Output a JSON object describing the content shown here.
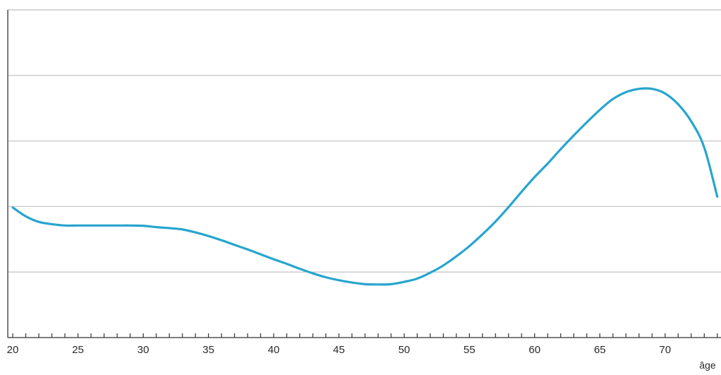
{
  "chart_data": {
    "type": "line",
    "title": "",
    "xlabel": "âge",
    "ylabel": "",
    "xlim": [
      20,
      74
    ],
    "xticks": [
      20,
      25,
      30,
      35,
      40,
      45,
      50,
      55,
      60,
      65,
      70
    ],
    "x_minor_step": 1,
    "grid": true,
    "grid_lines": 4,
    "series": [
      {
        "color": "#27a5cf",
        "x": [
          20,
          21,
          22,
          23,
          24,
          25,
          26,
          27,
          28,
          29,
          30,
          31,
          32,
          33,
          34,
          35,
          36,
          37,
          38,
          39,
          40,
          41,
          42,
          43,
          44,
          45,
          46,
          47,
          48,
          49,
          50,
          51,
          52,
          53,
          54,
          55,
          56,
          57,
          58,
          59,
          60,
          61,
          62,
          63,
          64,
          65,
          66,
          67,
          68,
          69,
          70,
          71,
          72,
          73,
          74
        ],
        "y": [
          0.397,
          0.37,
          0.353,
          0.346,
          0.342,
          0.342,
          0.342,
          0.342,
          0.342,
          0.342,
          0.341,
          0.337,
          0.334,
          0.33,
          0.321,
          0.31,
          0.297,
          0.283,
          0.269,
          0.254,
          0.239,
          0.225,
          0.21,
          0.196,
          0.184,
          0.175,
          0.168,
          0.163,
          0.162,
          0.163,
          0.17,
          0.18,
          0.198,
          0.22,
          0.248,
          0.279,
          0.315,
          0.354,
          0.398,
          0.445,
          0.49,
          0.531,
          0.575,
          0.617,
          0.657,
          0.695,
          0.728,
          0.749,
          0.759,
          0.759,
          0.745,
          0.712,
          0.66,
          0.58,
          0.43
        ]
      }
    ]
  }
}
